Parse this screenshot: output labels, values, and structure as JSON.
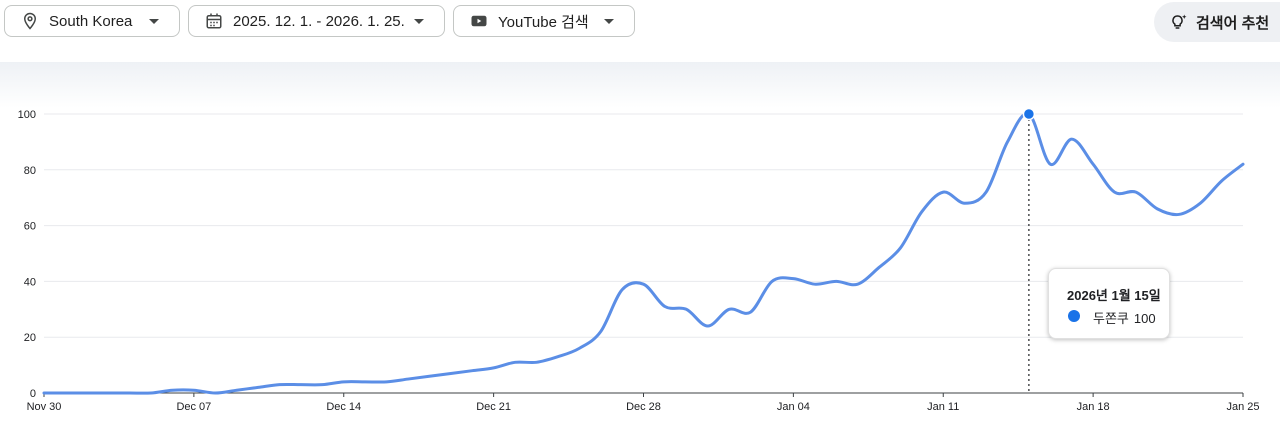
{
  "filters": {
    "region": "South Korea",
    "date_range": "2025. 12. 1. - 2026. 1. 25.",
    "source": "YouTube 검색"
  },
  "suggest_button": "검색어 추천",
  "colors": {
    "series": "#5b8ee6",
    "accent": "#1a73e8",
    "grid": "#e8eaed",
    "axis": "#3c4043"
  },
  "icons": {
    "region": "location-pin-icon",
    "date": "calendar-icon",
    "source": "youtube-icon",
    "suggest": "lightbulb-sparkle-icon"
  },
  "tooltip": {
    "date": "2026년 1월 15일",
    "series": "두쫀쿠",
    "value": "100"
  },
  "chart_data": {
    "type": "line",
    "title": "",
    "xlabel": "",
    "ylabel": "",
    "ylim": [
      0,
      100
    ],
    "yticks": [
      0,
      20,
      40,
      60,
      80,
      100
    ],
    "x_tick_labels": [
      "Nov 30",
      "Dec 07",
      "Dec 14",
      "Dec 21",
      "Dec 28",
      "Jan 04",
      "Jan 11",
      "Jan 18",
      "Jan 25"
    ],
    "grid": true,
    "legend": "none",
    "x": [
      "2025-11-30",
      "2025-12-01",
      "2025-12-02",
      "2025-12-03",
      "2025-12-04",
      "2025-12-05",
      "2025-12-06",
      "2025-12-07",
      "2025-12-08",
      "2025-12-09",
      "2025-12-10",
      "2025-12-11",
      "2025-12-12",
      "2025-12-13",
      "2025-12-14",
      "2025-12-15",
      "2025-12-16",
      "2025-12-17",
      "2025-12-18",
      "2025-12-19",
      "2025-12-20",
      "2025-12-21",
      "2025-12-22",
      "2025-12-23",
      "2025-12-24",
      "2025-12-25",
      "2025-12-26",
      "2025-12-27",
      "2025-12-28",
      "2025-12-29",
      "2025-12-30",
      "2025-12-31",
      "2026-01-01",
      "2026-01-02",
      "2026-01-03",
      "2026-01-04",
      "2026-01-05",
      "2026-01-06",
      "2026-01-07",
      "2026-01-08",
      "2026-01-09",
      "2026-01-10",
      "2026-01-11",
      "2026-01-12",
      "2026-01-13",
      "2026-01-14",
      "2026-01-15",
      "2026-01-16",
      "2026-01-17",
      "2026-01-18",
      "2026-01-19",
      "2026-01-20",
      "2026-01-21",
      "2026-01-22",
      "2026-01-23",
      "2026-01-24",
      "2026-01-25"
    ],
    "series": [
      {
        "name": "두쫀쿠",
        "values": [
          0,
          0,
          0,
          0,
          0,
          0,
          1,
          1,
          0,
          1,
          2,
          3,
          3,
          3,
          4,
          4,
          4,
          5,
          6,
          7,
          8,
          9,
          11,
          11,
          13,
          16,
          22,
          37,
          39,
          31,
          30,
          24,
          30,
          29,
          40,
          41,
          39,
          40,
          39,
          45,
          52,
          65,
          72,
          68,
          72,
          90,
          100,
          82,
          91,
          82,
          72,
          72,
          66,
          64,
          68,
          76,
          82
        ]
      }
    ]
  }
}
